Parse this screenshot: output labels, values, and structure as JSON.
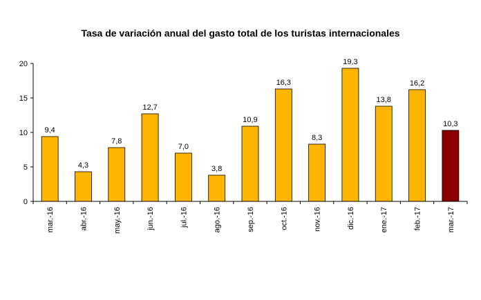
{
  "chart_data": {
    "type": "bar",
    "title": "Tasa de variación anual del gasto total de los turistas internacionales",
    "categories": [
      "mar.-16",
      "abr.-16",
      "may.-16",
      "jun.-16",
      "jul.-16",
      "ago.-16",
      "sep.-16",
      "oct.-16",
      "nov.-16",
      "dic.-16",
      "ene.-17",
      "feb.-17",
      "mar.-17"
    ],
    "values": [
      9.4,
      4.3,
      7.8,
      12.7,
      7.0,
      3.8,
      10.9,
      16.3,
      8.3,
      19.3,
      13.8,
      16.2,
      10.3
    ],
    "data_labels": [
      "9,4",
      "4,3",
      "7,8",
      "12,7",
      "7,0",
      "3,8",
      "10,9",
      "16,3",
      "8,3",
      "19,3",
      "13,8",
      "16,2",
      "10,3"
    ],
    "y_ticks": [
      0,
      5,
      10,
      15,
      20
    ],
    "ylim": [
      0,
      20
    ],
    "xlabel": "",
    "ylabel": "",
    "grid": false,
    "legend": "none",
    "colors": {
      "bar": "#FFB400",
      "highlight": "#8B0000",
      "border": "#000000"
    },
    "highlight_index": 12
  }
}
